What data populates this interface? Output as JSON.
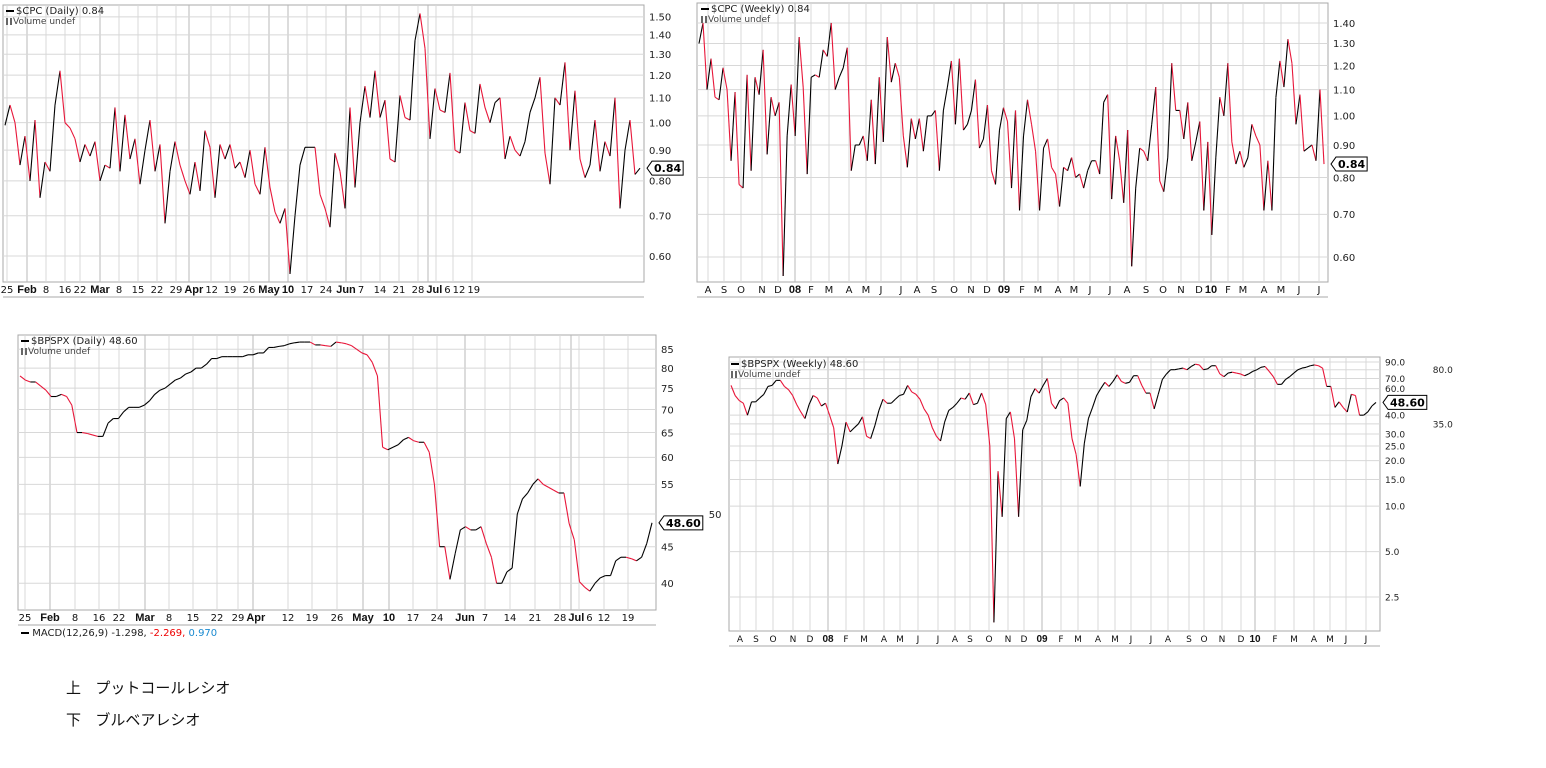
{
  "colors": {
    "up": "#000000",
    "down": "#e8173a",
    "grid": "#d8d8d8",
    "frame": "#a8a8a8"
  },
  "chart_data": [
    {
      "id": "cpc-daily",
      "type": "line",
      "y_scale": "log",
      "grid": true,
      "legend": {
        "title": "$CPC (Daily) 0.84",
        "volume": "Volume undef"
      },
      "last_value": "0.84",
      "ylim": [
        0.543,
        1.57
      ],
      "yticks": [
        "1.50",
        "1.40",
        "1.30",
        "1.20",
        "1.10",
        "1.00",
        "0.90",
        "0.80",
        "0.70",
        "0.60"
      ],
      "xticks": [
        "25",
        "Feb",
        "8",
        "16",
        "22",
        "Mar",
        "8",
        "15",
        "22",
        "29",
        "Apr",
        "12",
        "19",
        "26",
        "May",
        "10",
        "17",
        "24",
        "Jun",
        "7",
        "14",
        "21",
        "28",
        "Jul",
        "6",
        "12",
        "19"
      ],
      "values": [
        0.99,
        1.07,
        1.0,
        0.85,
        0.95,
        0.8,
        1.01,
        0.75,
        0.86,
        0.83,
        1.07,
        1.22,
        1.0,
        0.98,
        0.94,
        0.86,
        0.92,
        0.88,
        0.93,
        0.8,
        0.85,
        0.84,
        1.06,
        0.83,
        1.03,
        0.87,
        0.94,
        0.79,
        0.9,
        1.01,
        0.83,
        0.92,
        0.68,
        0.83,
        0.93,
        0.85,
        0.8,
        0.76,
        0.86,
        0.77,
        0.97,
        0.91,
        0.75,
        0.92,
        0.87,
        0.92,
        0.84,
        0.86,
        0.81,
        0.9,
        0.79,
        0.76,
        0.91,
        0.78,
        0.71,
        0.68,
        0.72,
        0.56,
        0.7,
        0.85,
        0.91,
        0.91,
        0.91,
        0.76,
        0.72,
        0.67,
        0.89,
        0.83,
        0.72,
        1.06,
        0.78,
        1.0,
        1.15,
        1.02,
        1.22,
        1.02,
        1.09,
        0.87,
        0.86,
        1.11,
        1.02,
        1.01,
        1.37,
        1.52,
        1.33,
        0.94,
        1.14,
        1.05,
        1.04,
        1.21,
        0.9,
        0.89,
        1.08,
        0.97,
        0.96,
        1.16,
        1.06,
        1.0,
        1.08,
        1.1,
        0.87,
        0.95,
        0.9,
        0.88,
        0.93,
        1.04,
        1.1,
        1.19,
        0.89,
        0.79,
        1.1,
        1.07,
        1.26,
        0.9,
        1.13,
        0.87,
        0.81,
        0.85,
        1.01,
        0.83,
        0.93,
        0.88,
        1.1,
        0.72,
        0.9,
        1.01,
        0.82,
        0.84
      ]
    },
    {
      "id": "cpc-weekly",
      "type": "line",
      "y_scale": "log",
      "grid": true,
      "legend": {
        "title": "$CPC (Weekly) 0.84",
        "volume": "Volume undef"
      },
      "last_value": "0.84",
      "ylim": [
        0.548,
        1.505
      ],
      "yticks": [
        "1.40",
        "1.30",
        "1.20",
        "1.10",
        "1.00",
        "0.90",
        "0.80",
        "0.70",
        "0.60"
      ],
      "xticks": [
        "A",
        "S",
        "O",
        "N",
        "D",
        "08",
        "F",
        "M",
        "A",
        "M",
        "J",
        "J",
        "A",
        "S",
        "O",
        "N",
        "D",
        "09",
        "F",
        "M",
        "A",
        "M",
        "J",
        "J",
        "A",
        "S",
        "O",
        "N",
        "D",
        "10",
        "F",
        "M",
        "A",
        "M",
        "J",
        "J"
      ],
      "values": [
        1.3,
        1.4,
        1.1,
        1.23,
        1.07,
        1.06,
        1.19,
        1.1,
        0.85,
        1.09,
        0.78,
        0.77,
        1.16,
        0.82,
        1.15,
        1.08,
        1.27,
        0.87,
        1.07,
        1.0,
        1.05,
        0.56,
        0.93,
        1.12,
        0.93,
        1.33,
        1.11,
        0.81,
        1.15,
        1.16,
        1.15,
        1.27,
        1.24,
        1.4,
        1.1,
        1.15,
        1.19,
        1.28,
        0.82,
        0.9,
        0.9,
        0.93,
        0.85,
        1.06,
        0.84,
        1.15,
        0.91,
        1.33,
        1.13,
        1.21,
        1.15,
        0.93,
        0.83,
        0.99,
        0.92,
        0.99,
        0.88,
        1.0,
        1.0,
        1.02,
        0.82,
        1.02,
        1.11,
        1.22,
        0.97,
        1.23,
        0.95,
        0.97,
        1.02,
        1.14,
        0.89,
        0.92,
        1.04,
        0.82,
        0.78,
        0.95,
        1.03,
        0.98,
        0.77,
        1.02,
        0.71,
        0.93,
        1.06,
        0.97,
        0.88,
        0.71,
        0.89,
        0.92,
        0.83,
        0.81,
        0.72,
        0.83,
        0.82,
        0.86,
        0.8,
        0.81,
        0.77,
        0.82,
        0.85,
        0.85,
        0.81,
        1.05,
        1.08,
        0.74,
        0.93,
        0.85,
        0.73,
        0.95,
        0.58,
        0.77,
        0.89,
        0.88,
        0.85,
        0.97,
        1.11,
        0.79,
        0.76,
        0.86,
        1.21,
        1.02,
        1.02,
        0.92,
        1.05,
        0.85,
        0.91,
        0.98,
        0.71,
        0.91,
        0.65,
        0.86,
        1.07,
        1.0,
        1.21,
        0.91,
        0.84,
        0.88,
        0.83,
        0.86,
        0.97,
        0.93,
        0.9,
        0.71,
        0.85,
        0.71,
        1.07,
        1.22,
        1.11,
        1.32,
        1.21,
        0.97,
        1.08,
        0.88,
        0.89,
        0.9,
        0.85,
        1.1,
        0.84
      ]
    },
    {
      "id": "bpspx-daily",
      "type": "line",
      "y_scale": "log",
      "grid": true,
      "legend": {
        "title": "$BPSPX (Daily) 48.60",
        "volume": "Volume undef"
      },
      "last_value": "48.60",
      "ylim": [
        36.7,
        89.0
      ],
      "yticks": [
        "85",
        "80",
        "75",
        "70",
        "65",
        "60",
        "55",
        "50",
        "45",
        "40"
      ],
      "xticks": [
        "25",
        "Feb",
        "8",
        "16",
        "22",
        "Mar",
        "8",
        "15",
        "22",
        "29",
        "Apr",
        "12",
        "19",
        "26",
        "May",
        "10",
        "17",
        "24",
        "Jun",
        "7",
        "14",
        "21",
        "28",
        "Jul",
        "6",
        "12",
        "19"
      ],
      "values": [
        78,
        77,
        76.5,
        76.5,
        75.5,
        74.5,
        73,
        73,
        73.5,
        73,
        71,
        65,
        65,
        64.8,
        64.5,
        64.2,
        64.2,
        67,
        68,
        68,
        69.5,
        70.5,
        70.5,
        70.5,
        71,
        72,
        73.5,
        74.5,
        75,
        76,
        77,
        77.5,
        78.5,
        79,
        80,
        80,
        81,
        82.5,
        82.5,
        83,
        83,
        83,
        83,
        83,
        83.5,
        83.5,
        84,
        84,
        85.5,
        85.5,
        85.8,
        86,
        86.5,
        86.8,
        87,
        87,
        87,
        86.2,
        86.2,
        86,
        85.8,
        87,
        86.8,
        86.5,
        86,
        85,
        84,
        83.5,
        81.5,
        78,
        62,
        61.5,
        62,
        62.5,
        63.5,
        64,
        63.3,
        63,
        63,
        61,
        55,
        45,
        45,
        40.5,
        44,
        47.5,
        48,
        47.5,
        47.5,
        48,
        45.5,
        43.5,
        40,
        40,
        41.5,
        42,
        50,
        52.5,
        53.5,
        55,
        56,
        55,
        54.5,
        54,
        53.5,
        53.5,
        48.5,
        46,
        40.2,
        39.5,
        39,
        40,
        40.7,
        41,
        41,
        43,
        43.5,
        43.5,
        43.3,
        43,
        43.5,
        45.5,
        48.6
      ],
      "macd": {
        "label": "MACD(12,26,9) -1.298,",
        "signal": "-2.269,",
        "histogram": "0.970"
      }
    },
    {
      "id": "bpspx-weekly",
      "type": "line",
      "y_scale": "log",
      "grid": true,
      "legend": {
        "title": "$BPSPX (Weekly) 48.60",
        "volume": "Volume undef"
      },
      "last_value": "48.60",
      "ylim": [
        1.49,
        97.1
      ],
      "yticks": [
        "90.0",
        "80.0",
        "70.0",
        "60.0",
        "40.0",
        "35.0",
        "30.0",
        "25.0",
        "20.0",
        "15.0",
        "10.0",
        "5.0",
        "2.5"
      ],
      "xticks": [
        "A",
        "S",
        "O",
        "N",
        "D",
        "08",
        "F",
        "M",
        "A",
        "M",
        "J",
        "J",
        "A",
        "S",
        "O",
        "N",
        "D",
        "09",
        "F",
        "M",
        "A",
        "M",
        "J",
        "J",
        "A",
        "S",
        "O",
        "N",
        "D",
        "10",
        "F",
        "M",
        "A",
        "M",
        "J",
        "J"
      ],
      "values": [
        63,
        54,
        50,
        48,
        40,
        49,
        49,
        52,
        55,
        62,
        63,
        68,
        68,
        62,
        59,
        54,
        47,
        42,
        38,
        47,
        54,
        52,
        46,
        48,
        40,
        33,
        19,
        25,
        36,
        31,
        33,
        35,
        39,
        29,
        28,
        34,
        43,
        51,
        48,
        48,
        51,
        54,
        55,
        63,
        57,
        55,
        51,
        44,
        40,
        33,
        29,
        27,
        36,
        43,
        45,
        48,
        52,
        51,
        56,
        47,
        48,
        56,
        47,
        25,
        1.7,
        17,
        8.5,
        38,
        42,
        28,
        8.5,
        32,
        37,
        53,
        60,
        56,
        63,
        70,
        48,
        44,
        50,
        52,
        48,
        28,
        22,
        13.5,
        26,
        38,
        45,
        54,
        60,
        66,
        62,
        67,
        74,
        67,
        65,
        66,
        73,
        73,
        63,
        56,
        56,
        44,
        55,
        69,
        75,
        80,
        80,
        81,
        82,
        80,
        84,
        87,
        86,
        80,
        81,
        85,
        85,
        75,
        72,
        76,
        77,
        76,
        75,
        73,
        75,
        78,
        80,
        83,
        84,
        78,
        72,
        64,
        64,
        69,
        72,
        76,
        80,
        82,
        83,
        85,
        86,
        85,
        82,
        62,
        62,
        45,
        49,
        45,
        42,
        55,
        54,
        40,
        40,
        42,
        46,
        48.6
      ]
    }
  ],
  "notes": [
    {
      "marker": "上",
      "text": "プットコールレシオ"
    },
    {
      "marker": "下",
      "text": "ブルベアレシオ"
    }
  ]
}
